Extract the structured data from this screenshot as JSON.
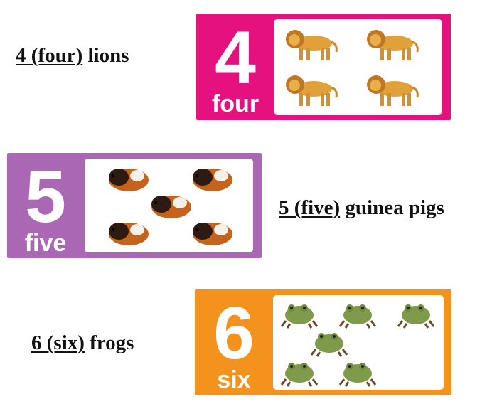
{
  "rows": [
    {
      "caption": {
        "number_word": "4 (four)",
        "noun": "lions"
      },
      "card": {
        "digit": "4",
        "word": "four",
        "color": "#e4117e",
        "animal": "lion-icon",
        "count": 4
      }
    },
    {
      "caption": {
        "number_word": "5 (five)",
        "noun": "guinea pigs"
      },
      "card": {
        "digit": "5",
        "word": "five",
        "color": "#a967b4",
        "animal": "guinea-pig-icon",
        "count": 5
      }
    },
    {
      "caption": {
        "number_word": "6 (six)",
        "noun": "frogs"
      },
      "card": {
        "digit": "6",
        "word": "six",
        "color": "#f4921e",
        "animal": "frog-icon",
        "count": 6
      }
    }
  ]
}
